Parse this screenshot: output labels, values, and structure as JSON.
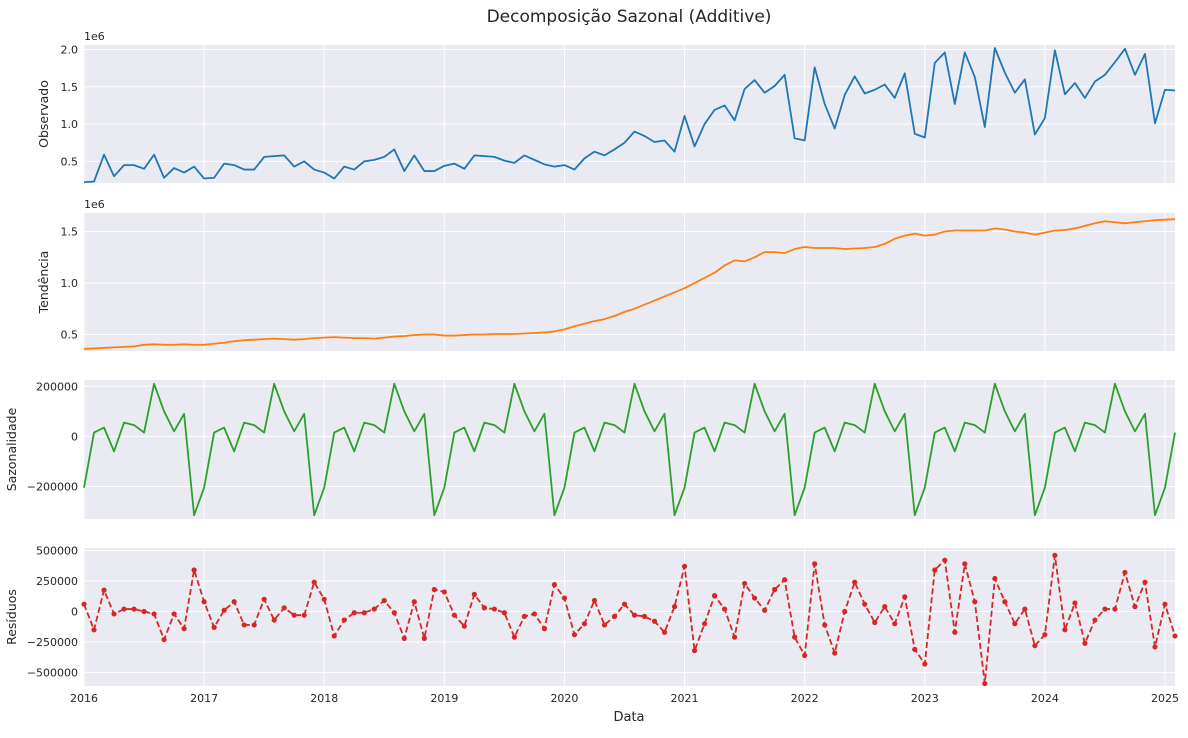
{
  "figure": {
    "title": "Decomposição Sazonal (Additive)",
    "xlabel": "Data"
  },
  "colors": {
    "panel_bg": "#eaeaf2",
    "grid": "#ffffff",
    "observed": "#1f77b4",
    "trend": "#ff7f0e",
    "seasonal": "#2ca02c",
    "resid": "#d62728"
  },
  "chart_data": [
    {
      "type": "line",
      "ylabel": "Observado",
      "offset_label": "1e6",
      "x_start": "2016-01",
      "x_freq": "monthly",
      "x_ticks": [
        "2016",
        "2017",
        "2018",
        "2019",
        "2020",
        "2021",
        "2022",
        "2023",
        "2024",
        "2025"
      ],
      "ylim": [
        0.21,
        2.06
      ],
      "y_ticks": [
        0.5,
        1.0,
        1.5,
        2.0
      ],
      "y_tick_labels": [
        "0.5",
        "1.0",
        "1.5",
        "2.0"
      ],
      "scale": "1e6",
      "grid": true,
      "series": [
        {
          "values": [
            0.22,
            0.23,
            0.59,
            0.3,
            0.45,
            0.45,
            0.4,
            0.59,
            0.28,
            0.41,
            0.35,
            0.43,
            0.27,
            0.28,
            0.47,
            0.45,
            0.39,
            0.39,
            0.56,
            0.57,
            0.58,
            0.43,
            0.5,
            0.39,
            0.35,
            0.27,
            0.43,
            0.39,
            0.5,
            0.52,
            0.56,
            0.66,
            0.37,
            0.58,
            0.37,
            0.37,
            0.44,
            0.47,
            0.4,
            0.58,
            0.57,
            0.56,
            0.51,
            0.48,
            0.58,
            0.52,
            0.46,
            0.43,
            0.45,
            0.39,
            0.54,
            0.63,
            0.58,
            0.66,
            0.75,
            0.9,
            0.84,
            0.76,
            0.78,
            0.63,
            1.11,
            0.7,
            1.0,
            1.19,
            1.25,
            1.05,
            1.47,
            1.59,
            1.42,
            1.51,
            1.66,
            0.81,
            0.78,
            1.76,
            1.27,
            0.94,
            1.39,
            1.64,
            1.41,
            1.46,
            1.53,
            1.35,
            1.68,
            0.87,
            0.82,
            1.82,
            1.96,
            1.27,
            1.96,
            1.63,
            0.96,
            2.02,
            1.69,
            1.42,
            1.6,
            0.86,
            1.08,
            1.99,
            1.4,
            1.55,
            1.35,
            1.57,
            1.66,
            1.83,
            2.01,
            1.66,
            1.94,
            1.01,
            1.46,
            1.45
          ]
        }
      ]
    },
    {
      "type": "line",
      "ylabel": "Tendência",
      "offset_label": "1e6",
      "x_start": "2016-01",
      "x_freq": "monthly",
      "x_ticks": [
        "2016",
        "2017",
        "2018",
        "2019",
        "2020",
        "2021",
        "2022",
        "2023",
        "2024",
        "2025"
      ],
      "ylim": [
        0.34,
        1.68
      ],
      "y_ticks": [
        0.5,
        1.0,
        1.5
      ],
      "y_tick_labels": [
        "0.5",
        "1.0",
        "1.5"
      ],
      "scale": "1e6",
      "grid": true,
      "series": [
        {
          "values": [
            0.36,
            0.365,
            0.37,
            0.375,
            0.38,
            0.385,
            0.4,
            0.405,
            0.4,
            0.4,
            0.405,
            0.4,
            0.4,
            0.41,
            0.42,
            0.435,
            0.445,
            0.45,
            0.455,
            0.46,
            0.455,
            0.45,
            0.455,
            0.465,
            0.47,
            0.475,
            0.47,
            0.465,
            0.465,
            0.46,
            0.47,
            0.48,
            0.485,
            0.495,
            0.5,
            0.5,
            0.49,
            0.49,
            0.495,
            0.5,
            0.5,
            0.505,
            0.505,
            0.505,
            0.51,
            0.515,
            0.52,
            0.53,
            0.55,
            0.58,
            0.605,
            0.63,
            0.65,
            0.68,
            0.72,
            0.75,
            0.79,
            0.83,
            0.87,
            0.91,
            0.95,
            1.0,
            1.05,
            1.1,
            1.17,
            1.22,
            1.21,
            1.25,
            1.3,
            1.3,
            1.29,
            1.33,
            1.35,
            1.34,
            1.34,
            1.34,
            1.33,
            1.335,
            1.34,
            1.35,
            1.38,
            1.43,
            1.46,
            1.48,
            1.46,
            1.47,
            1.5,
            1.51,
            1.51,
            1.51,
            1.51,
            1.53,
            1.52,
            1.5,
            1.49,
            1.47,
            1.49,
            1.51,
            1.515,
            1.53,
            1.555,
            1.58,
            1.6,
            1.59,
            1.58,
            1.59,
            1.6,
            1.61,
            1.615,
            1.62
          ]
        }
      ]
    },
    {
      "type": "line",
      "ylabel": "Sazonalidade",
      "x_start": "2016-01",
      "x_freq": "monthly",
      "x_ticks": [
        "2016",
        "2017",
        "2018",
        "2019",
        "2020",
        "2021",
        "2022",
        "2023",
        "2024",
        "2025"
      ],
      "ylim": [
        -330000,
        225000
      ],
      "y_ticks": [
        -200000,
        0,
        200000
      ],
      "y_tick_labels": [
        "−200000",
        "0",
        "200000"
      ],
      "grid": true,
      "series": [
        {
          "values": [
            -205000,
            15000,
            35000,
            -60000,
            55000,
            45000,
            15000,
            210000,
            100000,
            20000,
            90000,
            -315000,
            -205000,
            15000,
            35000,
            -60000,
            55000,
            45000,
            15000,
            210000,
            100000,
            20000,
            90000,
            -315000,
            -205000,
            15000,
            35000,
            -60000,
            55000,
            45000,
            15000,
            210000,
            100000,
            20000,
            90000,
            -315000,
            -205000,
            15000,
            35000,
            -60000,
            55000,
            45000,
            15000,
            210000,
            100000,
            20000,
            90000,
            -315000,
            -205000,
            15000,
            35000,
            -60000,
            55000,
            45000,
            15000,
            210000,
            100000,
            20000,
            90000,
            -315000,
            -205000,
            15000,
            35000,
            -60000,
            55000,
            45000,
            15000,
            210000,
            100000,
            20000,
            90000,
            -315000,
            -205000,
            15000,
            35000,
            -60000,
            55000,
            45000,
            15000,
            210000,
            100000,
            20000,
            90000,
            -315000,
            -205000,
            15000,
            35000,
            -60000,
            55000,
            45000,
            15000,
            210000,
            100000,
            20000,
            90000,
            -315000,
            -205000,
            15000,
            35000,
            -60000,
            55000,
            45000,
            15000,
            210000,
            100000,
            20000,
            90000,
            -315000,
            -205000,
            15000
          ]
        }
      ]
    },
    {
      "type": "line",
      "ylabel": "Resíduos",
      "x_start": "2016-01",
      "x_freq": "monthly",
      "x_ticks": [
        "2016",
        "2017",
        "2018",
        "2019",
        "2020",
        "2021",
        "2022",
        "2023",
        "2024",
        "2025"
      ],
      "ylim": [
        -610000,
        520000
      ],
      "y_ticks": [
        -500000,
        -250000,
        0,
        250000,
        500000
      ],
      "y_tick_labels": [
        "−500000",
        "−250000",
        "0",
        "250000",
        "500000"
      ],
      "grid": true,
      "line_style": "dashed",
      "markers": true,
      "series": [
        {
          "values": [
            60000,
            -150000,
            175000,
            -20000,
            20000,
            20000,
            0,
            -20000,
            -230000,
            -20000,
            -140000,
            340000,
            80000,
            -130000,
            10000,
            80000,
            -110000,
            -110000,
            100000,
            -70000,
            30000,
            -30000,
            -30000,
            240000,
            100000,
            -200000,
            -70000,
            -10000,
            -10000,
            20000,
            90000,
            -10000,
            -220000,
            80000,
            -220000,
            180000,
            160000,
            -30000,
            -120000,
            140000,
            30000,
            20000,
            -10000,
            -210000,
            -40000,
            -20000,
            -140000,
            220000,
            110000,
            -190000,
            -100000,
            90000,
            -110000,
            -40000,
            60000,
            -30000,
            -40000,
            -80000,
            -170000,
            40000,
            370000,
            -320000,
            -100000,
            130000,
            20000,
            -210000,
            230000,
            110000,
            10000,
            180000,
            260000,
            -210000,
            -360000,
            390000,
            -110000,
            -340000,
            0,
            240000,
            60000,
            -90000,
            40000,
            -100000,
            120000,
            -310000,
            -430000,
            340000,
            420000,
            -170000,
            390000,
            80000,
            -590000,
            270000,
            80000,
            -100000,
            20000,
            -280000,
            -190000,
            460000,
            -150000,
            70000,
            -260000,
            -70000,
            20000,
            20000,
            320000,
            40000,
            240000,
            -290000,
            60000,
            -200000
          ]
        }
      ]
    }
  ]
}
